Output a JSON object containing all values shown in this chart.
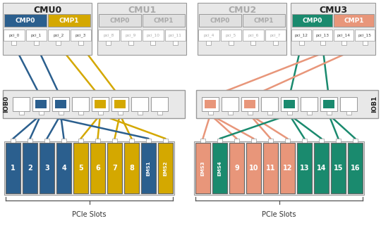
{
  "colors": {
    "blue": "#2b5f8e",
    "yellow": "#d4a800",
    "salmon": "#e8967a",
    "teal": "#1a8a6e",
    "light_gray": "#e8e8e8",
    "border": "#999999",
    "dark": "#222222",
    "gray_fill": "#dddddd",
    "inactive_text": "#aaaaaa",
    "white": "#ffffff"
  },
  "cmu_labels": [
    "CMU0",
    "CMU1",
    "CMU2",
    "CMU3"
  ],
  "cmu_active": [
    true,
    false,
    false,
    true
  ],
  "cmu_colors": [
    "#222222",
    "#aaaaaa",
    "#aaaaaa",
    "#222222"
  ],
  "cmp_labels": [
    [
      "CMP0",
      "CMP1"
    ],
    [
      "CMP0",
      "CMP1"
    ],
    [
      "CMP0",
      "CMP1"
    ],
    [
      "CMP0",
      "CMP1"
    ]
  ],
  "cmp_fill": [
    [
      "#2b5f8e",
      "#d4a800"
    ],
    [
      "#e0e0e0",
      "#e0e0e0"
    ],
    [
      "#e0e0e0",
      "#e0e0e0"
    ],
    [
      "#1a8a6e",
      "#e8967a"
    ]
  ],
  "cmp_text_color": [
    [
      "#ffffff",
      "#ffffff"
    ],
    [
      "#aaaaaa",
      "#aaaaaa"
    ],
    [
      "#aaaaaa",
      "#aaaaaa"
    ],
    [
      "#ffffff",
      "#ffffff"
    ]
  ],
  "pci_labels": [
    [
      "pci_0",
      "pci_1",
      "pci_2",
      "pci_3"
    ],
    [
      "pci_8",
      "pci_9",
      "pci_10",
      "pci_11"
    ],
    [
      "pci_4",
      "pci_5",
      "pci_6",
      "pci_7"
    ],
    [
      "pci_12",
      "pci_13",
      "pci_14",
      "pci_15"
    ]
  ],
  "pci_active": [
    [
      true,
      true,
      true,
      true
    ],
    [
      false,
      false,
      false,
      false
    ],
    [
      false,
      false,
      false,
      false
    ],
    [
      true,
      true,
      true,
      true
    ]
  ],
  "iob0_ports": [
    {
      "fc": "#dddddd",
      "filled": false
    },
    {
      "fc": "#2b5f8e",
      "filled": true
    },
    {
      "fc": "#2b5f8e",
      "filled": true
    },
    {
      "fc": "#dddddd",
      "filled": false
    },
    {
      "fc": "#d4a800",
      "filled": true
    },
    {
      "fc": "#d4a800",
      "filled": true
    },
    {
      "fc": "#dddddd",
      "filled": false
    },
    {
      "fc": "#dddddd",
      "filled": false
    }
  ],
  "iob1_ports": [
    {
      "fc": "#e8967a",
      "filled": true
    },
    {
      "fc": "#dddddd",
      "filled": false
    },
    {
      "fc": "#e8967a",
      "filled": true
    },
    {
      "fc": "#dddddd",
      "filled": false
    },
    {
      "fc": "#1a8a6e",
      "filled": true
    },
    {
      "fc": "#dddddd",
      "filled": false
    },
    {
      "fc": "#1a8a6e",
      "filled": true
    },
    {
      "fc": "#dddddd",
      "filled": false
    }
  ],
  "left_slots": [
    {
      "label": "1",
      "fc": "#2b5f8e"
    },
    {
      "label": "2",
      "fc": "#2b5f8e"
    },
    {
      "label": "3",
      "fc": "#2b5f8e"
    },
    {
      "label": "4",
      "fc": "#2b5f8e"
    },
    {
      "label": "5",
      "fc": "#d4a800"
    },
    {
      "label": "6",
      "fc": "#d4a800"
    },
    {
      "label": "7",
      "fc": "#d4a800"
    },
    {
      "label": "8",
      "fc": "#d4a800"
    },
    {
      "label": "EMS1",
      "fc": "#2b5f8e"
    },
    {
      "label": "EMS2",
      "fc": "#d4a800"
    }
  ],
  "right_slots": [
    {
      "label": "EMS3",
      "fc": "#e8967a"
    },
    {
      "label": "EMS4",
      "fc": "#1a8a6e"
    },
    {
      "label": "9",
      "fc": "#e8967a"
    },
    {
      "label": "10",
      "fc": "#e8967a"
    },
    {
      "label": "11",
      "fc": "#e8967a"
    },
    {
      "label": "12",
      "fc": "#e8967a"
    },
    {
      "label": "13",
      "fc": "#1a8a6e"
    },
    {
      "label": "14",
      "fc": "#1a8a6e"
    },
    {
      "label": "15",
      "fc": "#1a8a6e"
    },
    {
      "label": "16",
      "fc": "#1a8a6e"
    }
  ]
}
